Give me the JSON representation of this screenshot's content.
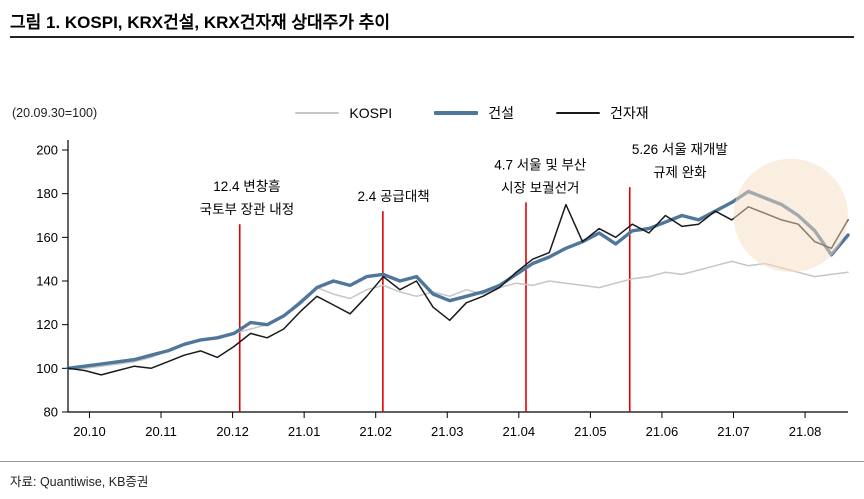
{
  "title": "그림 1. KOSPI, KRX건설, KRX건자재 상대주가 추이",
  "index_note": "(20.09.30=100)",
  "source": "자료: Quantiwise, KB증권",
  "legend": [
    {
      "label": "KOSPI",
      "color": "#c6c6c6",
      "thickness": 2
    },
    {
      "label": "건설",
      "color": "#4f769b",
      "thickness": 4
    },
    {
      "label": "건자재",
      "color": "#1a1a1a",
      "thickness": 2
    }
  ],
  "chart_data": {
    "type": "line",
    "title": "KOSPI, KRX건설, KRX건자재 상대주가 추이",
    "subtitle": "20.09.30=100",
    "xlabel": "",
    "ylabel": "상대주가 (20.09.30=100)",
    "ylim": [
      80,
      200
    ],
    "yticks": [
      80,
      100,
      120,
      140,
      160,
      180,
      200
    ],
    "xmin": -0.3,
    "xmax": 10.6,
    "xticks": [
      0,
      1,
      2,
      3,
      4,
      5,
      6,
      7,
      8,
      9,
      10
    ],
    "xtick_labels": [
      "20.10",
      "20.11",
      "20.12",
      "21.01",
      "21.02",
      "21.03",
      "21.04",
      "21.05",
      "21.06",
      "21.07",
      "21.08"
    ],
    "grid": false,
    "legend_position": "top",
    "series": [
      {
        "name": "KOSPI",
        "color": "#c6c6c6",
        "width": 1.5,
        "values": [
          100,
          100,
          101,
          102,
          103,
          105,
          108,
          111,
          113,
          114,
          116,
          118,
          120,
          124,
          131,
          137,
          134,
          132,
          136,
          138,
          135,
          133,
          135,
          133,
          136,
          134,
          137,
          139,
          138,
          140,
          139,
          138,
          137,
          139,
          141,
          142,
          144,
          143,
          145,
          147,
          149,
          147,
          148,
          146,
          144,
          142,
          143,
          144
        ]
      },
      {
        "name": "건설",
        "color": "#4f769b",
        "width": 3.4,
        "values": [
          100,
          101,
          102,
          103,
          104,
          106,
          108,
          111,
          113,
          114,
          116,
          121,
          120,
          124,
          130,
          137,
          140,
          138,
          142,
          143,
          140,
          142,
          134,
          131,
          133,
          135,
          138,
          143,
          148,
          151,
          155,
          158,
          162,
          157,
          163,
          164,
          167,
          170,
          168,
          172,
          176,
          181,
          178,
          175,
          170,
          163,
          152,
          161
        ]
      },
      {
        "name": "건자재",
        "color": "#1a1a1a",
        "width": 1.5,
        "values": [
          100,
          99,
          97,
          99,
          101,
          100,
          103,
          106,
          108,
          105,
          110,
          116,
          114,
          118,
          126,
          133,
          129,
          125,
          133,
          142,
          136,
          140,
          128,
          122,
          130,
          133,
          137,
          144,
          150,
          153,
          175,
          158,
          164,
          160,
          166,
          162,
          170,
          165,
          166,
          172,
          168,
          174,
          171,
          168,
          166,
          158,
          155,
          168
        ]
      }
    ],
    "events": [
      {
        "x": 2.1,
        "top": 166,
        "label_x": 2.2,
        "color": "#e60000",
        "lines": [
          "12.4 변창흠",
          "국토부 장관 내정"
        ]
      },
      {
        "x": 4.1,
        "top": 172,
        "label_x": 4.25,
        "color": "#e60000",
        "lines": [
          "2.4 공급대책"
        ]
      },
      {
        "x": 6.1,
        "top": 176,
        "label_x": 6.3,
        "color": "#e60000",
        "lines": [
          "4.7 서울 및 부산",
          "시장 보궐선거"
        ]
      },
      {
        "x": 7.55,
        "top": 183,
        "label_x": 8.25,
        "color": "#e60000",
        "lines": [
          "5.26 서울 재개발",
          "규제 완화"
        ]
      }
    ],
    "highlight": {
      "cx": 9.8,
      "cy": 170,
      "rx": 0.8,
      "ry": 26,
      "color": "#f6ddc3",
      "opacity": 0.5
    }
  }
}
